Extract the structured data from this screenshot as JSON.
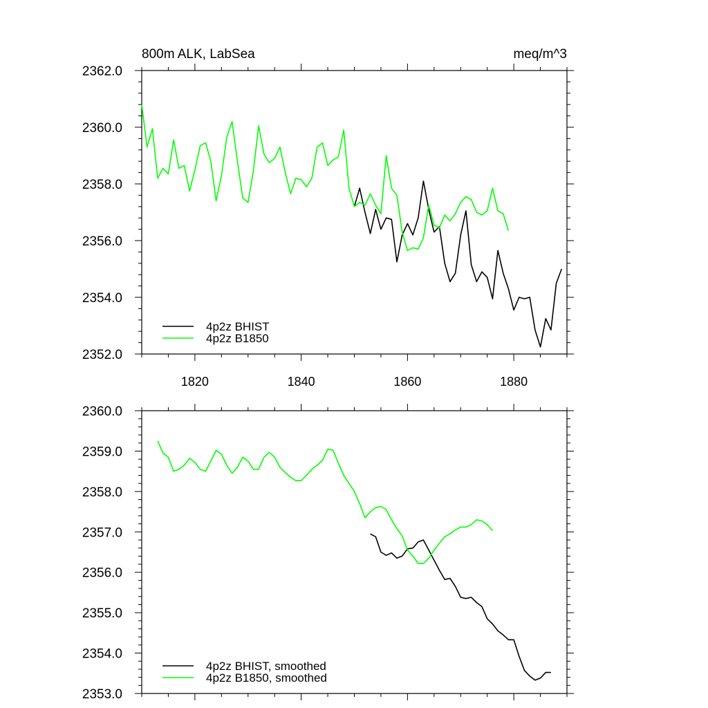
{
  "figure": {
    "title_left": "800m ALK, LabSea",
    "title_right": "meq/m^3"
  },
  "colors": {
    "bhist": "#000000",
    "b1850": "#00ff00",
    "axis": "#000000"
  },
  "chart_data": [
    {
      "type": "line",
      "panel": "top",
      "title": "800m ALK, LabSea",
      "units": "meq/m^3",
      "xlim": [
        1810,
        1890
      ],
      "ylim": [
        2352,
        2362
      ],
      "xticks": [
        1820,
        1840,
        1860,
        1880
      ],
      "xtick_labels": [
        "1820",
        "1840",
        "1860",
        "1880"
      ],
      "yticks": [
        2352,
        2354,
        2356,
        2358,
        2360,
        2362
      ],
      "ytick_labels": [
        "2352.0",
        "2354.0",
        "2356.0",
        "2358.0",
        "2360.0",
        "2362.0"
      ],
      "legend_position": "bottom-left",
      "series": [
        {
          "name": "4p2z BHIST",
          "color": "#000000",
          "x": [
            1850,
            1851,
            1852,
            1853,
            1854,
            1855,
            1856,
            1857,
            1858,
            1859,
            1860,
            1861,
            1862,
            1863,
            1864,
            1865,
            1866,
            1867,
            1868,
            1869,
            1870,
            1871,
            1872,
            1873,
            1874,
            1875,
            1876,
            1877,
            1878,
            1879,
            1880,
            1881,
            1882,
            1883,
            1884,
            1885,
            1886,
            1887,
            1888,
            1889
          ],
          "values": [
            2357.2,
            2357.85,
            2357.0,
            2356.25,
            2357.1,
            2356.4,
            2356.8,
            2356.75,
            2355.25,
            2356.2,
            2356.6,
            2356.2,
            2356.8,
            2358.1,
            2357.1,
            2356.3,
            2356.5,
            2355.2,
            2354.55,
            2354.85,
            2356.2,
            2357.05,
            2355.15,
            2354.55,
            2354.9,
            2354.7,
            2353.95,
            2355.65,
            2354.85,
            2354.3,
            2353.55,
            2354.0,
            2353.95,
            2354.0,
            2352.85,
            2352.25,
            2353.25,
            2352.85,
            2354.5,
            2355.0
          ]
        },
        {
          "name": "4p2z B1850",
          "color": "#00ff00",
          "x": [
            1810,
            1811,
            1812,
            1813,
            1814,
            1815,
            1816,
            1817,
            1818,
            1819,
            1820,
            1821,
            1822,
            1823,
            1824,
            1825,
            1826,
            1827,
            1828,
            1829,
            1830,
            1831,
            1832,
            1833,
            1834,
            1835,
            1836,
            1837,
            1838,
            1839,
            1840,
            1841,
            1842,
            1843,
            1844,
            1845,
            1846,
            1847,
            1848,
            1849,
            1850,
            1851,
            1852,
            1853,
            1854,
            1855,
            1856,
            1857,
            1858,
            1859,
            1860,
            1861,
            1862,
            1863,
            1864,
            1865,
            1866,
            1867,
            1868,
            1869,
            1870,
            1871,
            1872,
            1873,
            1874,
            1875,
            1876,
            1877,
            1878,
            1879
          ],
          "values": [
            2360.8,
            2359.3,
            2359.95,
            2358.2,
            2358.55,
            2358.35,
            2359.55,
            2358.55,
            2358.65,
            2357.75,
            2358.5,
            2359.35,
            2359.45,
            2358.8,
            2357.4,
            2358.3,
            2359.65,
            2360.2,
            2358.8,
            2357.5,
            2357.35,
            2358.45,
            2360.05,
            2359.05,
            2358.75,
            2358.9,
            2359.3,
            2358.4,
            2357.65,
            2358.2,
            2358.15,
            2357.9,
            2358.2,
            2359.3,
            2359.45,
            2358.65,
            2358.85,
            2358.95,
            2359.9,
            2357.85,
            2357.2,
            2357.35,
            2357.25,
            2357.65,
            2357.25,
            2356.95,
            2359.0,
            2357.85,
            2357.6,
            2356.3,
            2355.65,
            2355.75,
            2355.7,
            2356.1,
            2357.25,
            2356.55,
            2356.45,
            2356.9,
            2356.7,
            2356.95,
            2357.35,
            2357.55,
            2357.45,
            2357.0,
            2356.9,
            2357.05,
            2357.85,
            2357.05,
            2356.95,
            2356.35
          ]
        }
      ]
    },
    {
      "type": "line",
      "panel": "bottom",
      "xlim": [
        1810,
        1890
      ],
      "ylim": [
        2353,
        2360
      ],
      "yticks": [
        2353,
        2354,
        2355,
        2356,
        2357,
        2358,
        2359,
        2360
      ],
      "ytick_labels": [
        "2353.0",
        "2354.0",
        "2355.0",
        "2356.0",
        "2357.0",
        "2358.0",
        "2359.0",
        "2360.0"
      ],
      "legend_position": "bottom-left",
      "series": [
        {
          "name": "4p2z BHIST, smoothed",
          "color": "#000000",
          "x": [
            1853,
            1854,
            1855,
            1856,
            1857,
            1858,
            1859,
            1860,
            1861,
            1862,
            1863,
            1864,
            1865,
            1866,
            1867,
            1868,
            1869,
            1870,
            1871,
            1872,
            1873,
            1874,
            1875,
            1876,
            1877,
            1878,
            1879,
            1880,
            1881,
            1882,
            1883,
            1884,
            1885,
            1886,
            1887
          ],
          "values": [
            2356.95,
            2356.88,
            2356.5,
            2356.42,
            2356.48,
            2356.35,
            2356.4,
            2356.58,
            2356.6,
            2356.75,
            2356.8,
            2356.55,
            2356.3,
            2356.05,
            2355.82,
            2355.85,
            2355.65,
            2355.38,
            2355.35,
            2355.38,
            2355.25,
            2355.15,
            2354.85,
            2354.72,
            2354.55,
            2354.45,
            2354.33,
            2354.33,
            2353.92,
            2353.57,
            2353.43,
            2353.33,
            2353.38,
            2353.52,
            2353.52
          ]
        },
        {
          "name": "4p2z B1850, smoothed",
          "color": "#00ff00",
          "x": [
            1813,
            1814,
            1815,
            1816,
            1817,
            1818,
            1819,
            1820,
            1821,
            1822,
            1823,
            1824,
            1825,
            1826,
            1827,
            1828,
            1829,
            1830,
            1831,
            1832,
            1833,
            1834,
            1835,
            1836,
            1837,
            1838,
            1839,
            1840,
            1841,
            1842,
            1843,
            1844,
            1845,
            1846,
            1847,
            1848,
            1849,
            1850,
            1851,
            1852,
            1853,
            1854,
            1855,
            1856,
            1857,
            1858,
            1859,
            1860,
            1861,
            1862,
            1863,
            1864,
            1865,
            1866,
            1867,
            1868,
            1869,
            1870,
            1871,
            1872,
            1873,
            1874,
            1875,
            1876
          ],
          "values": [
            2359.25,
            2358.95,
            2358.85,
            2358.5,
            2358.55,
            2358.65,
            2358.82,
            2358.72,
            2358.55,
            2358.5,
            2358.75,
            2359.02,
            2358.92,
            2358.65,
            2358.45,
            2358.6,
            2358.85,
            2358.75,
            2358.55,
            2358.55,
            2358.85,
            2358.97,
            2358.85,
            2358.6,
            2358.47,
            2358.35,
            2358.27,
            2358.27,
            2358.4,
            2358.55,
            2358.65,
            2358.77,
            2359.05,
            2359.02,
            2358.7,
            2358.4,
            2358.2,
            2358.0,
            2357.7,
            2357.35,
            2357.5,
            2357.6,
            2357.63,
            2357.55,
            2357.3,
            2357.08,
            2356.9,
            2356.55,
            2356.4,
            2356.22,
            2356.22,
            2356.35,
            2356.55,
            2356.72,
            2356.88,
            2356.95,
            2357.05,
            2357.12,
            2357.12,
            2357.18,
            2357.3,
            2357.27,
            2357.18,
            2357.03
          ]
        }
      ]
    }
  ]
}
